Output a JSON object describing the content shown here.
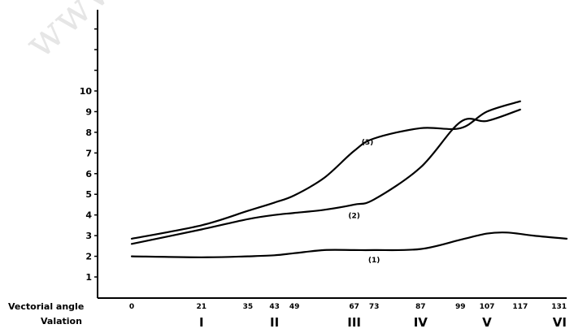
{
  "watermark": "www.geojournals.cn",
  "chart_data": {
    "type": "line",
    "ylim": [
      0,
      10
    ],
    "yticks": [
      1,
      2,
      3,
      4,
      5,
      6,
      7,
      8,
      9,
      10
    ],
    "ytick_labels": [
      "1",
      "2",
      "3",
      "4",
      "5",
      "6",
      "7",
      "8",
      "9",
      "10"
    ],
    "x_row_label": "Vectorial angle",
    "x_tick_labels": [
      "0",
      "21",
      "35",
      "43",
      "49",
      "67",
      "73",
      "87",
      "99",
      "107",
      "117",
      "131"
    ],
    "x": [
      0,
      21,
      35,
      43,
      49,
      67,
      73,
      87,
      99,
      107,
      117,
      131
    ],
    "xlim": [
      0,
      131
    ],
    "grid": false,
    "phase_row_label": "Valation",
    "phases": [
      {
        "label": "I",
        "x": 21
      },
      {
        "label": "II",
        "x": 43
      },
      {
        "label": "III",
        "x": 67
      },
      {
        "label": "IV",
        "x": 87
      },
      {
        "label": "V",
        "x": 107
      },
      {
        "label": "VI",
        "x": 131
      }
    ],
    "series": [
      {
        "name": "(1)",
        "label_at": [
          73,
          1.7
        ],
        "points": [
          [
            0,
            2.0
          ],
          [
            21,
            1.95
          ],
          [
            35,
            2.0
          ],
          [
            43,
            2.05
          ],
          [
            49,
            2.15
          ],
          [
            58,
            2.3
          ],
          [
            67,
            2.3
          ],
          [
            73,
            2.3
          ],
          [
            87,
            2.35
          ],
          [
            99,
            2.8
          ],
          [
            107,
            3.1
          ],
          [
            113,
            3.15
          ],
          [
            121,
            3.0
          ],
          [
            131,
            2.85
          ]
        ]
      },
      {
        "name": "(2)",
        "label_at": [
          67,
          3.85
        ],
        "points": [
          [
            0,
            2.6
          ],
          [
            21,
            3.3
          ],
          [
            35,
            3.8
          ],
          [
            43,
            4.0
          ],
          [
            49,
            4.1
          ],
          [
            58,
            4.25
          ],
          [
            67,
            4.5
          ],
          [
            73,
            4.75
          ],
          [
            87,
            6.3
          ],
          [
            99,
            8.5
          ],
          [
            107,
            8.55
          ],
          [
            117,
            9.1
          ]
        ]
      },
      {
        "name": "(3)",
        "label_at": [
          71,
          7.4
        ],
        "points": [
          [
            0,
            2.85
          ],
          [
            21,
            3.5
          ],
          [
            35,
            4.2
          ],
          [
            43,
            4.6
          ],
          [
            49,
            4.95
          ],
          [
            58,
            5.8
          ],
          [
            67,
            7.1
          ],
          [
            73,
            7.7
          ],
          [
            87,
            8.2
          ],
          [
            99,
            8.2
          ],
          [
            107,
            9.0
          ],
          [
            117,
            9.5
          ]
        ]
      }
    ]
  }
}
